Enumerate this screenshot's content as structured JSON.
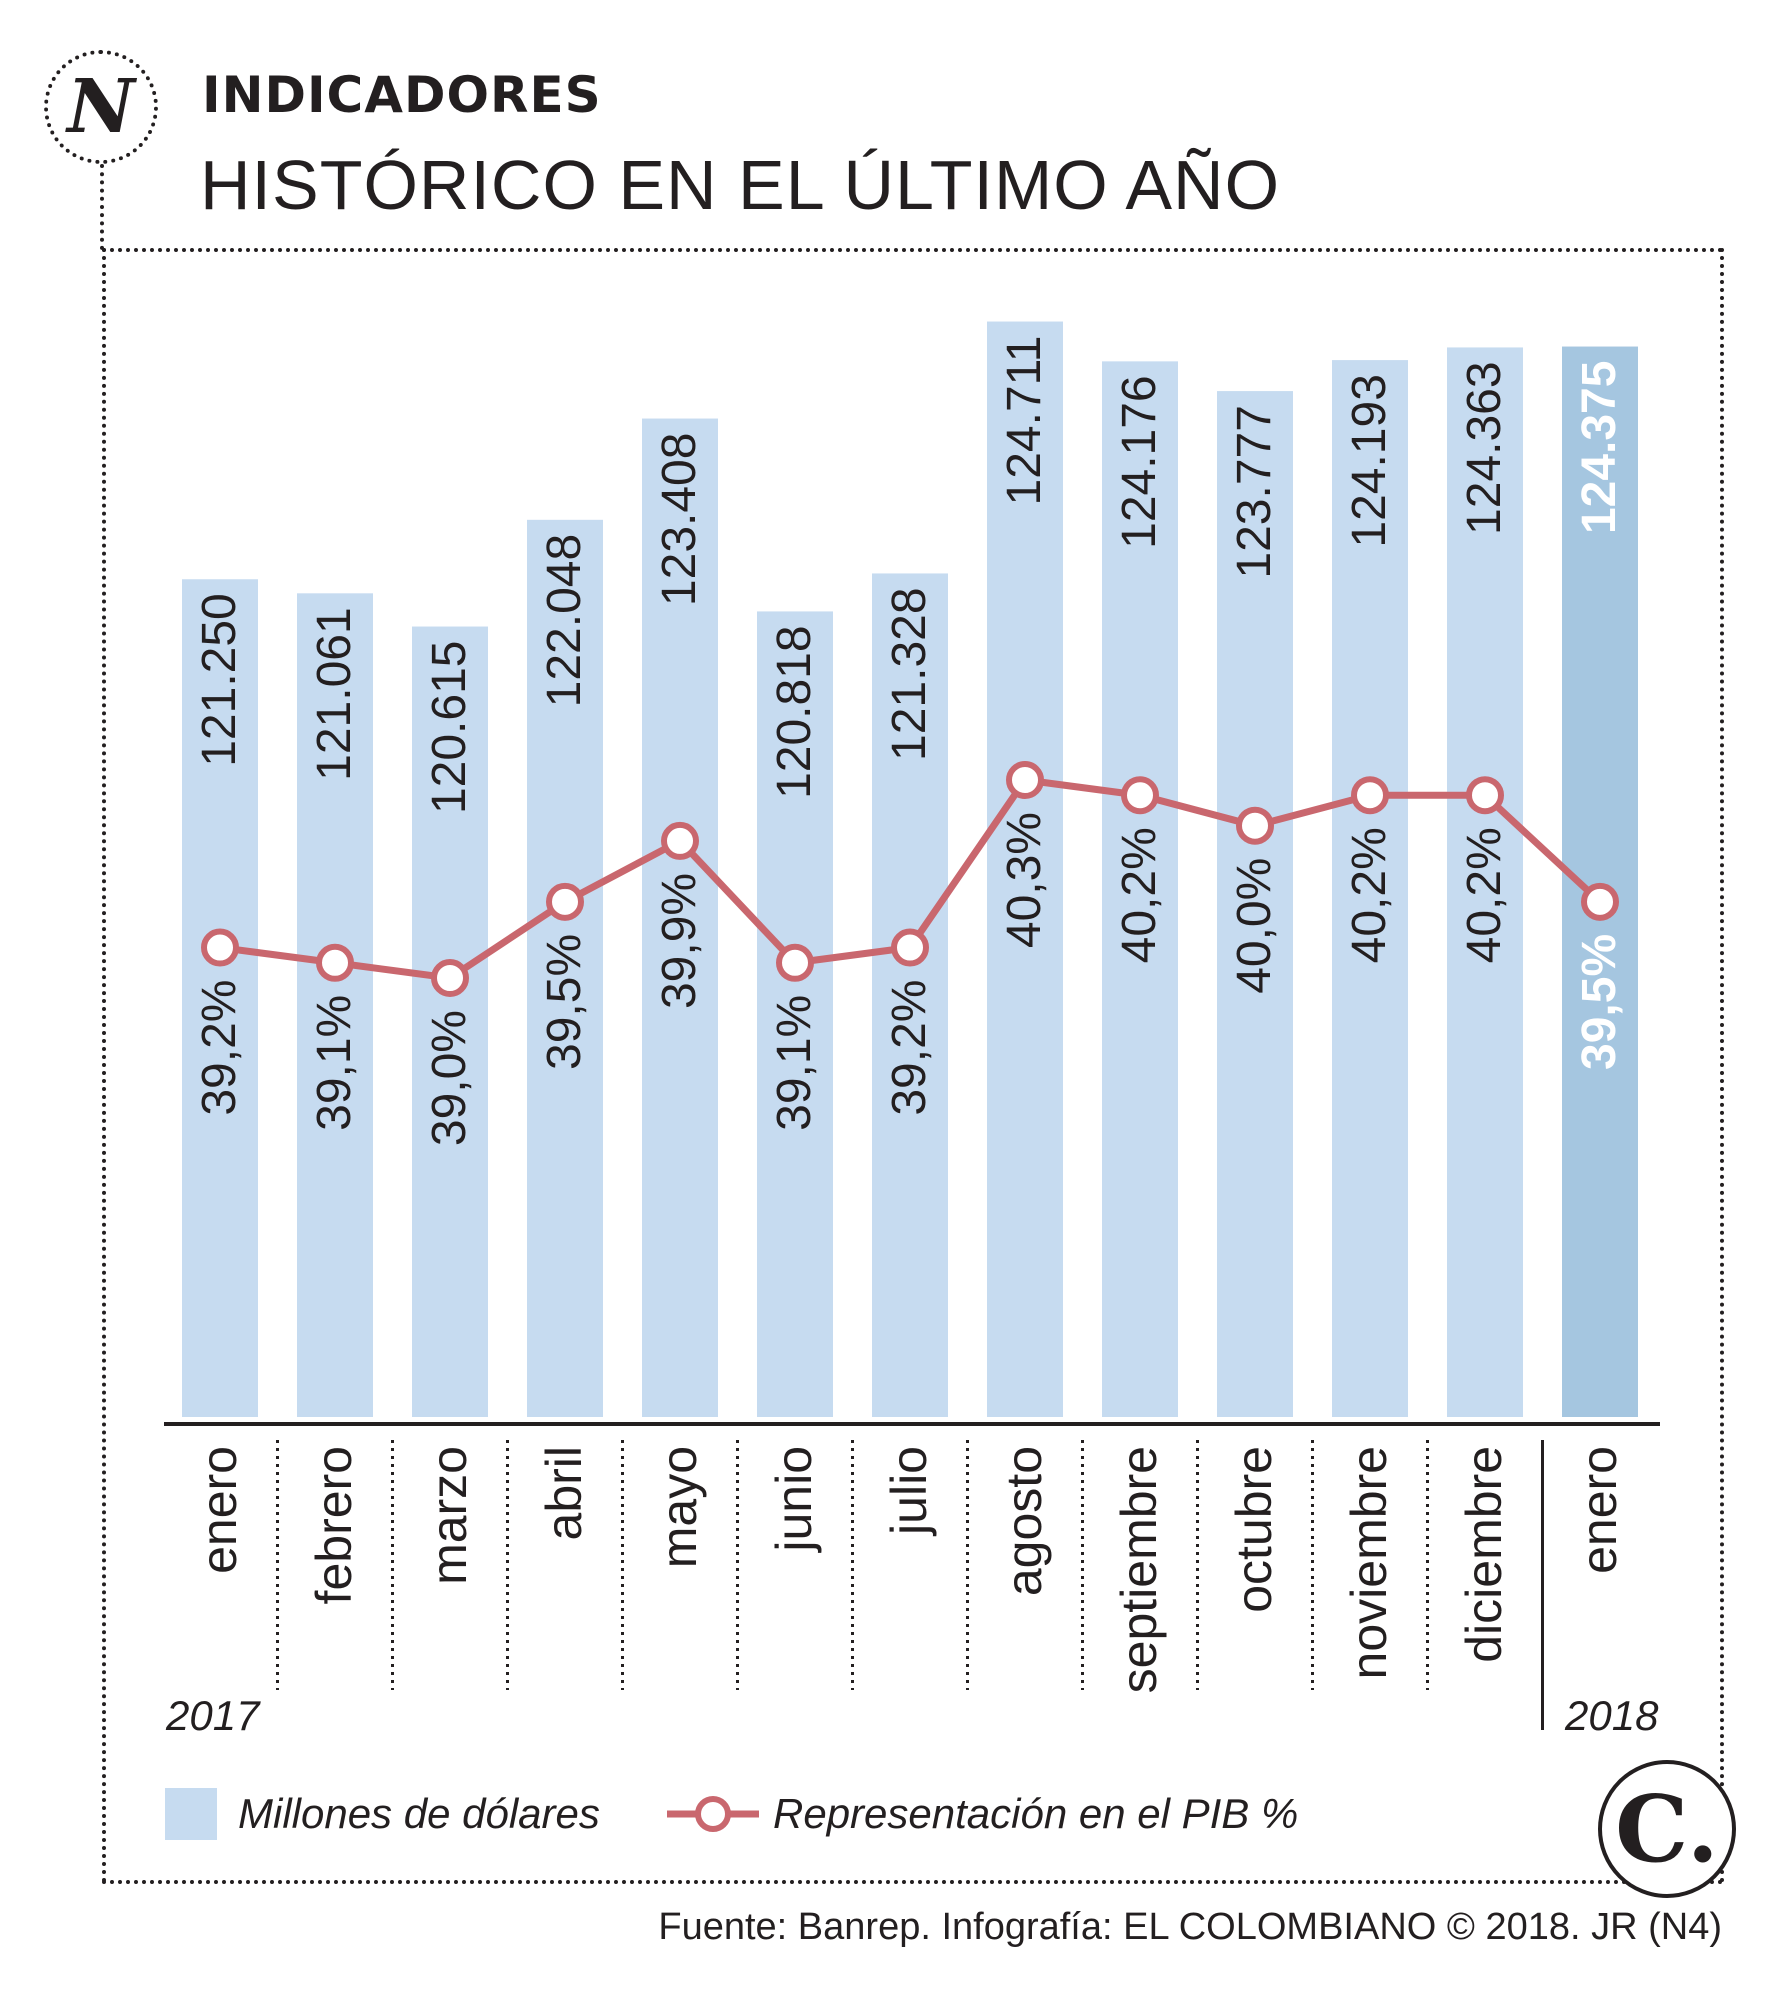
{
  "header": {
    "logo_letter": "N",
    "kicker": "INDICADORES",
    "title": "HISTÓRICO EN EL ÚLTIMO AÑO"
  },
  "colors": {
    "bar": "#c6dbf0",
    "bar_highlight": "#a5c6e0",
    "line": "#c9676e",
    "text": "#231f20",
    "highlight_text": "#ffffff"
  },
  "chart_data": {
    "type": "bar",
    "title": "HISTÓRICO EN EL ÚLTIMO AÑO",
    "categories": [
      "enero",
      "febrero",
      "marzo",
      "abril",
      "mayo",
      "junio",
      "julio",
      "agosto",
      "septiembre",
      "octubre",
      "noviembre",
      "diciembre",
      "enero"
    ],
    "year_labels": {
      "first": "2017",
      "last": "2018"
    },
    "series": [
      {
        "name": "Millones de dólares",
        "type": "bar",
        "values": [
          121250,
          121061,
          120615,
          122048,
          123408,
          120818,
          121328,
          124711,
          124176,
          123777,
          124193,
          124363,
          124375
        ],
        "labels": [
          "121.250",
          "121.061",
          "120.615",
          "122.048",
          "123.408",
          "120.818",
          "121.328",
          "124.711",
          "124.176",
          "123.777",
          "124.193",
          "124.363",
          "124.375"
        ]
      },
      {
        "name": "Representación en el PIB %",
        "type": "line",
        "values": [
          39.2,
          39.1,
          39.0,
          39.5,
          39.9,
          39.1,
          39.2,
          40.3,
          40.2,
          40.0,
          40.2,
          40.2,
          39.5
        ],
        "labels": [
          "39,2%",
          "39,1%",
          "39,0%",
          "39,5%",
          "39,9%",
          "39,1%",
          "39,2%",
          "40,3%",
          "40,2%",
          "40,0%",
          "40,2%",
          "40,2%",
          "39,5%"
        ]
      }
    ],
    "highlight_index": 12,
    "grid": false
  },
  "legend": {
    "bars_label": "Millones de dólares",
    "line_label": "Representación en el PIB %"
  },
  "logo_c": "C.",
  "source": "Fuente: Banrep. Infografía: EL COLOMBIANO © 2018. JR (N4)"
}
